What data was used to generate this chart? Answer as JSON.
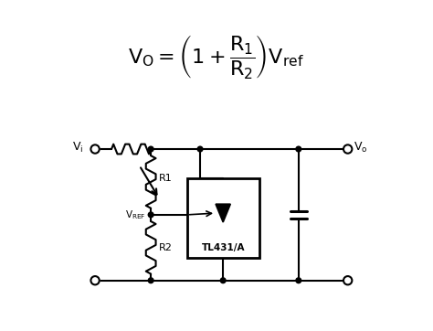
{
  "bg_color": "#ffffff",
  "line_color": "#000000",
  "formula_text": "V_O = \\left(1 + \\frac{R_1}{R_2}\\right)V_{ref}",
  "title": "TL431/A",
  "fig_width": 4.74,
  "fig_height": 3.62,
  "dpi": 100
}
